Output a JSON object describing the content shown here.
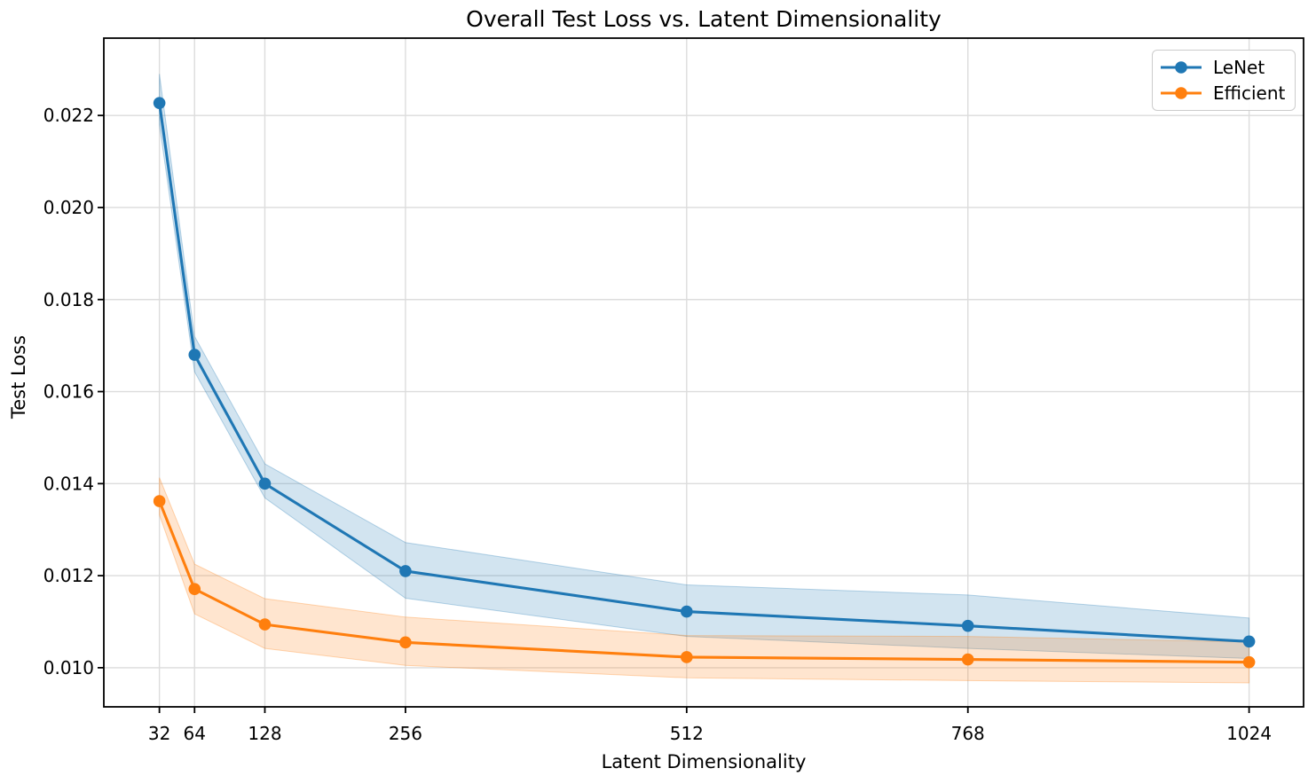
{
  "figure": {
    "background": "#ffffff"
  },
  "chart_data": {
    "type": "line",
    "title": "Overall Test Loss vs. Latent Dimensionality",
    "xlabel": "Latent Dimensionality",
    "ylabel": "Test Loss",
    "x": [
      32,
      64,
      128,
      256,
      512,
      768,
      1024
    ],
    "xtick_labels": [
      "32",
      "64",
      "128",
      "256",
      "512",
      "768",
      "1024"
    ],
    "yticks": [
      0.01,
      0.012,
      0.014,
      0.016,
      0.018,
      0.02,
      0.022
    ],
    "ytick_labels": [
      "0.010",
      "0.012",
      "0.014",
      "0.016",
      "0.018",
      "0.020",
      "0.022"
    ],
    "xlim": [
      -18.6,
      1073.6
    ],
    "ylim": [
      0.00915,
      0.02368
    ],
    "grid": true,
    "grid_color": "#dcdcdc",
    "spine_color": "#000000",
    "band_opacity": 0.2,
    "legend_position": "upper right",
    "series": [
      {
        "name": "LeNet",
        "color": "#1f77b4",
        "values": [
          0.02227,
          0.0168,
          0.014,
          0.0121,
          0.01122,
          0.01091,
          0.01057
        ],
        "band_upper": [
          0.0229,
          0.0172,
          0.01443,
          0.01272,
          0.0118,
          0.01158,
          0.01108
        ],
        "band_lower": [
          0.0218,
          0.01643,
          0.01369,
          0.01151,
          0.01068,
          0.01042,
          0.0102
        ]
      },
      {
        "name": "Efficient",
        "color": "#ff7f0e",
        "values": [
          0.01362,
          0.01171,
          0.01094,
          0.01055,
          0.01023,
          0.01018,
          0.01012
        ],
        "band_upper": [
          0.01413,
          0.01225,
          0.0115,
          0.0111,
          0.0107,
          0.01068,
          0.01056
        ],
        "band_lower": [
          0.01332,
          0.01117,
          0.01042,
          0.01005,
          0.00978,
          0.00972,
          0.00967
        ]
      }
    ]
  }
}
